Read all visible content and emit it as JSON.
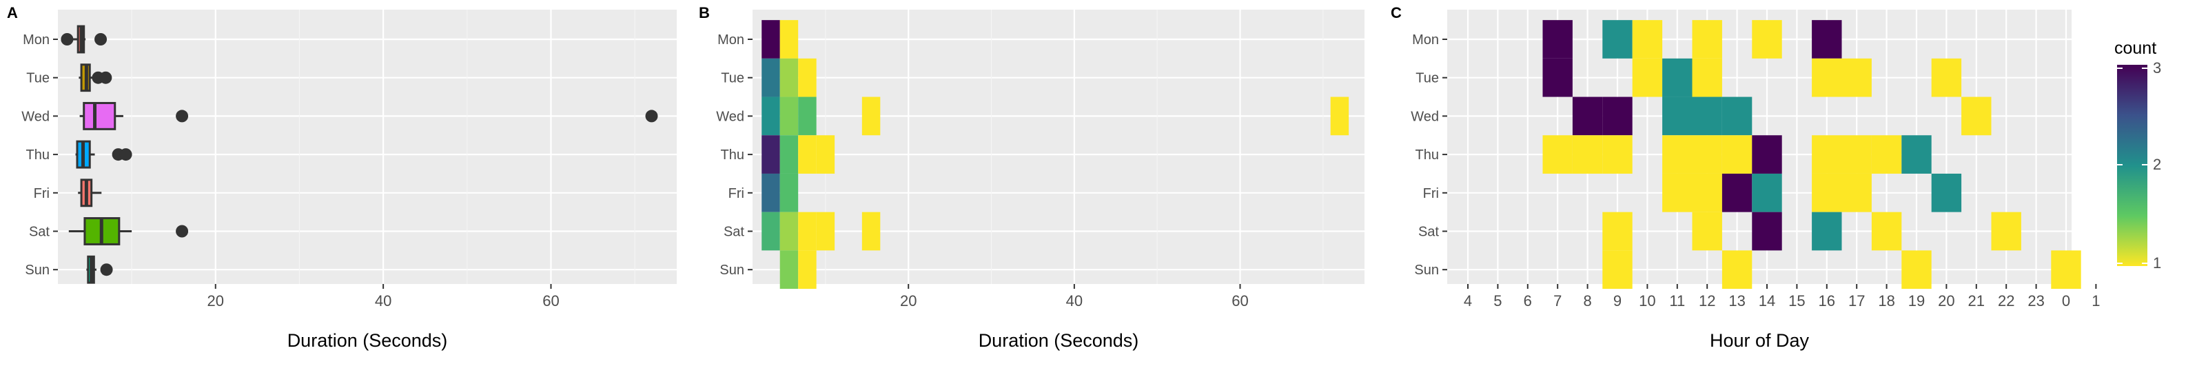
{
  "panels": {
    "a_label": "A",
    "b_label": "B",
    "c_label": "C"
  },
  "legend": {
    "title": "count",
    "ticks": [
      "1",
      "2",
      "3"
    ]
  },
  "chart_data": [
    {
      "type": "boxplot",
      "panel": "A",
      "xlabel": "Duration (Seconds)",
      "ylabel": "",
      "xlim": [
        1.2,
        75
      ],
      "x_ticks": [
        20,
        40,
        60
      ],
      "categories": [
        "Mon",
        "Tue",
        "Wed",
        "Thu",
        "Fri",
        "Sat",
        "Sun"
      ],
      "grid": true,
      "boxes": [
        {
          "day": "Mon",
          "whisker_low": 2.3,
          "q1": 3.6,
          "median": 4.0,
          "q3": 4.3,
          "whisker_high": 4.5,
          "outliers": [
            2.3,
            6.3
          ],
          "color": "#F8766D"
        },
        {
          "day": "Tue",
          "whisker_low": 3.7,
          "q1": 4.0,
          "median": 4.6,
          "q3": 5.0,
          "whisker_high": 5.4,
          "outliers": [
            6.0,
            6.9
          ],
          "color": "#C49A00"
        },
        {
          "day": "Wed",
          "whisker_low": 3.8,
          "q1": 4.3,
          "median": 5.6,
          "q3": 8.0,
          "whisker_high": 9.0,
          "outliers": [
            16,
            72
          ],
          "color": "#E76BF3"
        },
        {
          "day": "Thu",
          "whisker_low": 3.3,
          "q1": 3.5,
          "median": 4.2,
          "q3": 5.0,
          "whisker_high": 5.6,
          "outliers": [
            8.4,
            9.3
          ],
          "color": "#00A9FF"
        },
        {
          "day": "Fri",
          "whisker_low": 3.6,
          "q1": 4.0,
          "median": 4.6,
          "q3": 5.2,
          "whisker_high": 6.4,
          "outliers": [],
          "color": "#F8766D"
        },
        {
          "day": "Sat",
          "whisker_low": 2.5,
          "q1": 4.4,
          "median": 6.4,
          "q3": 8.5,
          "whisker_high": 10.0,
          "outliers": [
            16
          ],
          "color": "#53B400"
        },
        {
          "day": "Sun",
          "whisker_low": 4.6,
          "q1": 4.8,
          "median": 5.2,
          "q3": 5.5,
          "whisker_high": 5.8,
          "outliers": [
            7.0
          ],
          "color": "#00C094"
        }
      ]
    },
    {
      "type": "heatmap",
      "panel": "B",
      "xlabel": "Duration (Seconds)",
      "ylabel": "",
      "xlim": [
        1.2,
        75
      ],
      "x_ticks": [
        20,
        40,
        60
      ],
      "bin_width": 2.2,
      "categories": [
        "Mon",
        "Tue",
        "Wed",
        "Thu",
        "Fri",
        "Sat",
        "Sun"
      ],
      "colorscale": "viridis",
      "count_range": [
        1,
        3
      ],
      "cells": [
        {
          "day": "Mon",
          "x": 3.4,
          "count": 3
        },
        {
          "day": "Mon",
          "x": 5.6,
          "count": 1
        },
        {
          "day": "Tue",
          "x": 3.4,
          "count": 2.2
        },
        {
          "day": "Tue",
          "x": 5.6,
          "count": 1.3
        },
        {
          "day": "Tue",
          "x": 7.8,
          "count": 1
        },
        {
          "day": "Wed",
          "x": 3.4,
          "count": 2
        },
        {
          "day": "Wed",
          "x": 5.6,
          "count": 1.4
        },
        {
          "day": "Wed",
          "x": 7.8,
          "count": 1.6
        },
        {
          "day": "Wed",
          "x": 15.5,
          "count": 1
        },
        {
          "day": "Wed",
          "x": 72,
          "count": 1
        },
        {
          "day": "Thu",
          "x": 3.4,
          "count": 2.8
        },
        {
          "day": "Thu",
          "x": 5.6,
          "count": 1.6
        },
        {
          "day": "Thu",
          "x": 7.8,
          "count": 1
        },
        {
          "day": "Thu",
          "x": 10.0,
          "count": 1
        },
        {
          "day": "Fri",
          "x": 3.4,
          "count": 2.3
        },
        {
          "day": "Fri",
          "x": 5.6,
          "count": 1.6
        },
        {
          "day": "Sat",
          "x": 3.4,
          "count": 1.7
        },
        {
          "day": "Sat",
          "x": 5.6,
          "count": 1.3
        },
        {
          "day": "Sat",
          "x": 7.8,
          "count": 1
        },
        {
          "day": "Sat",
          "x": 10.0,
          "count": 1
        },
        {
          "day": "Sat",
          "x": 15.5,
          "count": 1
        },
        {
          "day": "Sun",
          "x": 5.6,
          "count": 1.4
        },
        {
          "day": "Sun",
          "x": 7.8,
          "count": 1
        }
      ]
    },
    {
      "type": "heatmap",
      "panel": "C",
      "xlabel": "Hour of Day",
      "ylabel": "",
      "categories_x": [
        "4",
        "5",
        "6",
        "7",
        "8",
        "9",
        "10",
        "11",
        "12",
        "13",
        "14",
        "15",
        "16",
        "17",
        "18",
        "19",
        "20",
        "21",
        "22",
        "23",
        "0",
        "1"
      ],
      "categories": [
        "Mon",
        "Tue",
        "Wed",
        "Thu",
        "Fri",
        "Sat",
        "Sun"
      ],
      "colorscale": "viridis",
      "count_range": [
        1,
        3
      ],
      "cells": [
        {
          "day": "Mon",
          "hour": "7",
          "count": 3
        },
        {
          "day": "Mon",
          "hour": "9",
          "count": 2
        },
        {
          "day": "Mon",
          "hour": "10",
          "count": 1
        },
        {
          "day": "Mon",
          "hour": "12",
          "count": 1
        },
        {
          "day": "Mon",
          "hour": "14",
          "count": 1
        },
        {
          "day": "Mon",
          "hour": "16",
          "count": 3
        },
        {
          "day": "Tue",
          "hour": "7",
          "count": 3
        },
        {
          "day": "Tue",
          "hour": "10",
          "count": 1
        },
        {
          "day": "Tue",
          "hour": "11",
          "count": 2
        },
        {
          "day": "Tue",
          "hour": "12",
          "count": 1
        },
        {
          "day": "Tue",
          "hour": "16",
          "count": 1
        },
        {
          "day": "Tue",
          "hour": "17",
          "count": 1
        },
        {
          "day": "Tue",
          "hour": "20",
          "count": 1
        },
        {
          "day": "Wed",
          "hour": "8",
          "count": 3
        },
        {
          "day": "Wed",
          "hour": "9",
          "count": 3
        },
        {
          "day": "Wed",
          "hour": "11",
          "count": 2
        },
        {
          "day": "Wed",
          "hour": "12",
          "count": 2
        },
        {
          "day": "Wed",
          "hour": "13",
          "count": 2
        },
        {
          "day": "Wed",
          "hour": "21",
          "count": 1
        },
        {
          "day": "Thu",
          "hour": "7",
          "count": 1
        },
        {
          "day": "Thu",
          "hour": "8",
          "count": 1
        },
        {
          "day": "Thu",
          "hour": "9",
          "count": 1
        },
        {
          "day": "Thu",
          "hour": "11",
          "count": 1
        },
        {
          "day": "Thu",
          "hour": "12",
          "count": 1
        },
        {
          "day": "Thu",
          "hour": "13",
          "count": 1
        },
        {
          "day": "Thu",
          "hour": "14",
          "count": 3
        },
        {
          "day": "Thu",
          "hour": "16",
          "count": 1
        },
        {
          "day": "Thu",
          "hour": "17",
          "count": 1
        },
        {
          "day": "Thu",
          "hour": "18",
          "count": 1
        },
        {
          "day": "Thu",
          "hour": "19",
          "count": 2
        },
        {
          "day": "Fri",
          "hour": "11",
          "count": 1
        },
        {
          "day": "Fri",
          "hour": "12",
          "count": 1
        },
        {
          "day": "Fri",
          "hour": "13",
          "count": 3
        },
        {
          "day": "Fri",
          "hour": "14",
          "count": 2
        },
        {
          "day": "Fri",
          "hour": "16",
          "count": 1
        },
        {
          "day": "Fri",
          "hour": "17",
          "count": 1
        },
        {
          "day": "Fri",
          "hour": "20",
          "count": 2
        },
        {
          "day": "Sat",
          "hour": "9",
          "count": 1
        },
        {
          "day": "Sat",
          "hour": "12",
          "count": 1
        },
        {
          "day": "Sat",
          "hour": "14",
          "count": 3
        },
        {
          "day": "Sat",
          "hour": "16",
          "count": 2
        },
        {
          "day": "Sat",
          "hour": "18",
          "count": 1
        },
        {
          "day": "Sat",
          "hour": "22",
          "count": 1
        },
        {
          "day": "Sun",
          "hour": "9",
          "count": 1
        },
        {
          "day": "Sun",
          "hour": "13",
          "count": 1
        },
        {
          "day": "Sun",
          "hour": "19",
          "count": 1
        },
        {
          "day": "Sun",
          "hour": "0",
          "count": 1
        }
      ]
    }
  ]
}
